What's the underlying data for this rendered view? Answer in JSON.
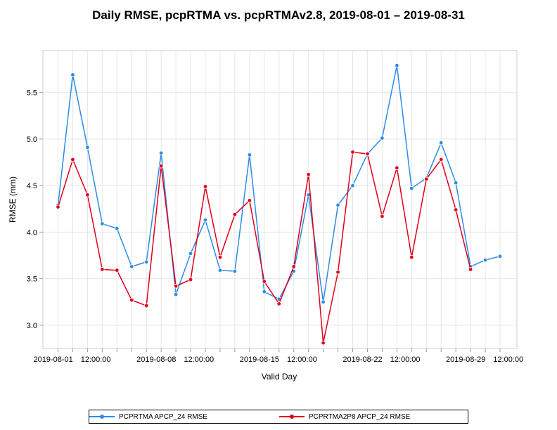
{
  "chart_data": {
    "type": "line",
    "title": "Daily RMSE, pcpRTMA vs. pcpRTMAv2.8, 2019-08-01 – 2019-08-31",
    "xlabel": "Valid Day",
    "ylabel": "RMSE (mm)",
    "ylim": [
      2.75,
      5.95
    ],
    "yticks": [
      "3.0",
      "3.5",
      "4.0",
      "4.5",
      "5.0",
      "5.5"
    ],
    "xticks": [
      "2019-08-01 12:00:00",
      "2019-08-08 12:00:00",
      "2019-08-15 12:00:00",
      "2019-08-22 12:00:00",
      "2019-08-29 12:00:00"
    ],
    "grid": true,
    "legend_position": "bottom",
    "categories": [
      "2019-08-01",
      "2019-08-02",
      "2019-08-03",
      "2019-08-04",
      "2019-08-05",
      "2019-08-06",
      "2019-08-07",
      "2019-08-08",
      "2019-08-09",
      "2019-08-10",
      "2019-08-11",
      "2019-08-12",
      "2019-08-13",
      "2019-08-14",
      "2019-08-15",
      "2019-08-16",
      "2019-08-17",
      "2019-08-18",
      "2019-08-19",
      "2019-08-20",
      "2019-08-21",
      "2019-08-22",
      "2019-08-23",
      "2019-08-24",
      "2019-08-25",
      "2019-08-26",
      "2019-08-27",
      "2019-08-28",
      "2019-08-29",
      "2019-08-30",
      "2019-08-31"
    ],
    "series": [
      {
        "name": "PCPRTMA APCP_24 RMSE",
        "color": "#2b8ce6",
        "values": [
          4.29,
          5.69,
          4.91,
          4.09,
          4.04,
          3.63,
          3.68,
          4.85,
          3.33,
          3.77,
          4.13,
          3.59,
          3.58,
          4.83,
          3.36,
          3.28,
          3.58,
          4.4,
          3.25,
          4.29,
          4.5,
          4.84,
          5.01,
          5.79,
          4.47,
          4.58,
          4.96,
          4.53,
          3.63,
          3.7,
          3.74
        ]
      },
      {
        "name": "PCPRTMA2P8 APCP_24 RMSE",
        "color": "#e0001a",
        "values": [
          4.27,
          4.78,
          4.4,
          3.6,
          3.59,
          3.27,
          3.21,
          4.71,
          3.42,
          3.49,
          4.49,
          3.73,
          4.19,
          4.34,
          3.47,
          3.23,
          3.63,
          4.62,
          2.81,
          3.57,
          4.86,
          4.84,
          4.17,
          4.69,
          3.73,
          4.57,
          4.78,
          4.24,
          3.6,
          null,
          null
        ]
      }
    ]
  }
}
